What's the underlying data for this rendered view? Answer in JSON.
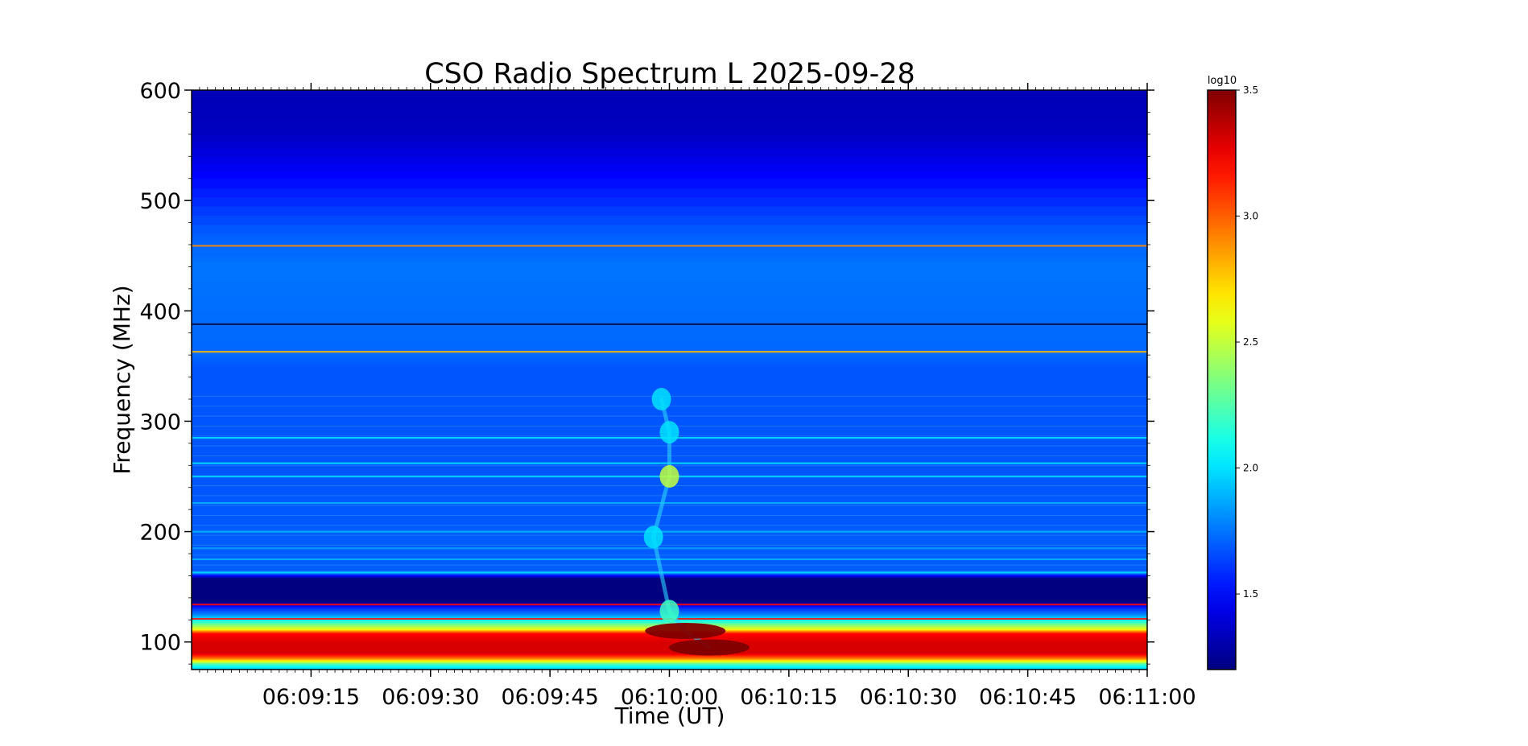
{
  "chart_data": {
    "type": "heatmap",
    "title": "CSO Radio Spectrum L 2025-09-28",
    "xlabel": "Time (UT)",
    "ylabel": "Frequency (MHz)",
    "x_start": "06:09:00",
    "xlim": [
      "06:09:00",
      "06:11:00"
    ],
    "ylim": [
      75,
      600
    ],
    "x_ticks": [
      "06:09:15",
      "06:09:30",
      "06:09:45",
      "06:10:00",
      "06:10:15",
      "06:10:30",
      "06:10:45",
      "06:11:00"
    ],
    "y_ticks": [
      100,
      200,
      300,
      400,
      500,
      600
    ],
    "colormap": "jet",
    "colorbar": {
      "label": "log10",
      "range": [
        1.2,
        3.5
      ],
      "ticks": [
        "1.5",
        "2.0",
        "2.5",
        "3.0",
        "3.5"
      ]
    },
    "background_profile": [
      {
        "mhz": 75,
        "level": 1.9
      },
      {
        "mhz": 80,
        "level": 2.2
      },
      {
        "mhz": 85,
        "level": 2.9
      },
      {
        "mhz": 90,
        "level": 3.3
      },
      {
        "mhz": 100,
        "level": 3.3
      },
      {
        "mhz": 108,
        "level": 3.2
      },
      {
        "mhz": 112,
        "level": 2.6
      },
      {
        "mhz": 118,
        "level": 2.2
      },
      {
        "mhz": 125,
        "level": 1.8
      },
      {
        "mhz": 132,
        "level": 1.55
      },
      {
        "mhz": 137,
        "level": 1.2
      },
      {
        "mhz": 158,
        "level": 1.2
      },
      {
        "mhz": 162,
        "level": 1.7
      },
      {
        "mhz": 250,
        "level": 1.68
      },
      {
        "mhz": 350,
        "level": 1.68
      },
      {
        "mhz": 360,
        "level": 1.72
      },
      {
        "mhz": 440,
        "level": 1.75
      },
      {
        "mhz": 470,
        "level": 1.7
      },
      {
        "mhz": 520,
        "level": 1.5
      },
      {
        "mhz": 560,
        "level": 1.35
      },
      {
        "mhz": 600,
        "level": 1.32
      }
    ],
    "interference_lines": [
      {
        "mhz": 363,
        "level": 2.8
      },
      {
        "mhz": 388,
        "level": 1.0
      },
      {
        "mhz": 163,
        "level": 2.0
      },
      {
        "mhz": 459,
        "level": 2.9
      },
      {
        "mhz": 134,
        "level": 3.2
      },
      {
        "mhz": 121,
        "level": 3.2
      },
      {
        "mhz": 250,
        "level": 2.0
      },
      {
        "mhz": 262,
        "level": 2.0
      },
      {
        "mhz": 285,
        "level": 2.0
      },
      {
        "mhz": 200,
        "level": 1.9
      },
      {
        "mhz": 226,
        "level": 1.9
      },
      {
        "mhz": 175,
        "level": 1.9
      },
      {
        "mhz": 185,
        "level": 1.85
      }
    ],
    "burst": [
      {
        "time": "06:09:59",
        "mhz": 320,
        "level": 2.0
      },
      {
        "time": "06:10:00",
        "mhz": 290,
        "level": 2.0
      },
      {
        "time": "06:10:00",
        "mhz": 250,
        "level": 2.5
      },
      {
        "time": "06:09:58",
        "mhz": 195,
        "level": 2.0
      },
      {
        "time": "06:10:00",
        "mhz": 128,
        "level": 2.2
      },
      {
        "time": "06:10:02",
        "mhz": 110,
        "level": 3.5
      },
      {
        "time": "06:10:05",
        "mhz": 95,
        "level": 3.5
      }
    ]
  }
}
